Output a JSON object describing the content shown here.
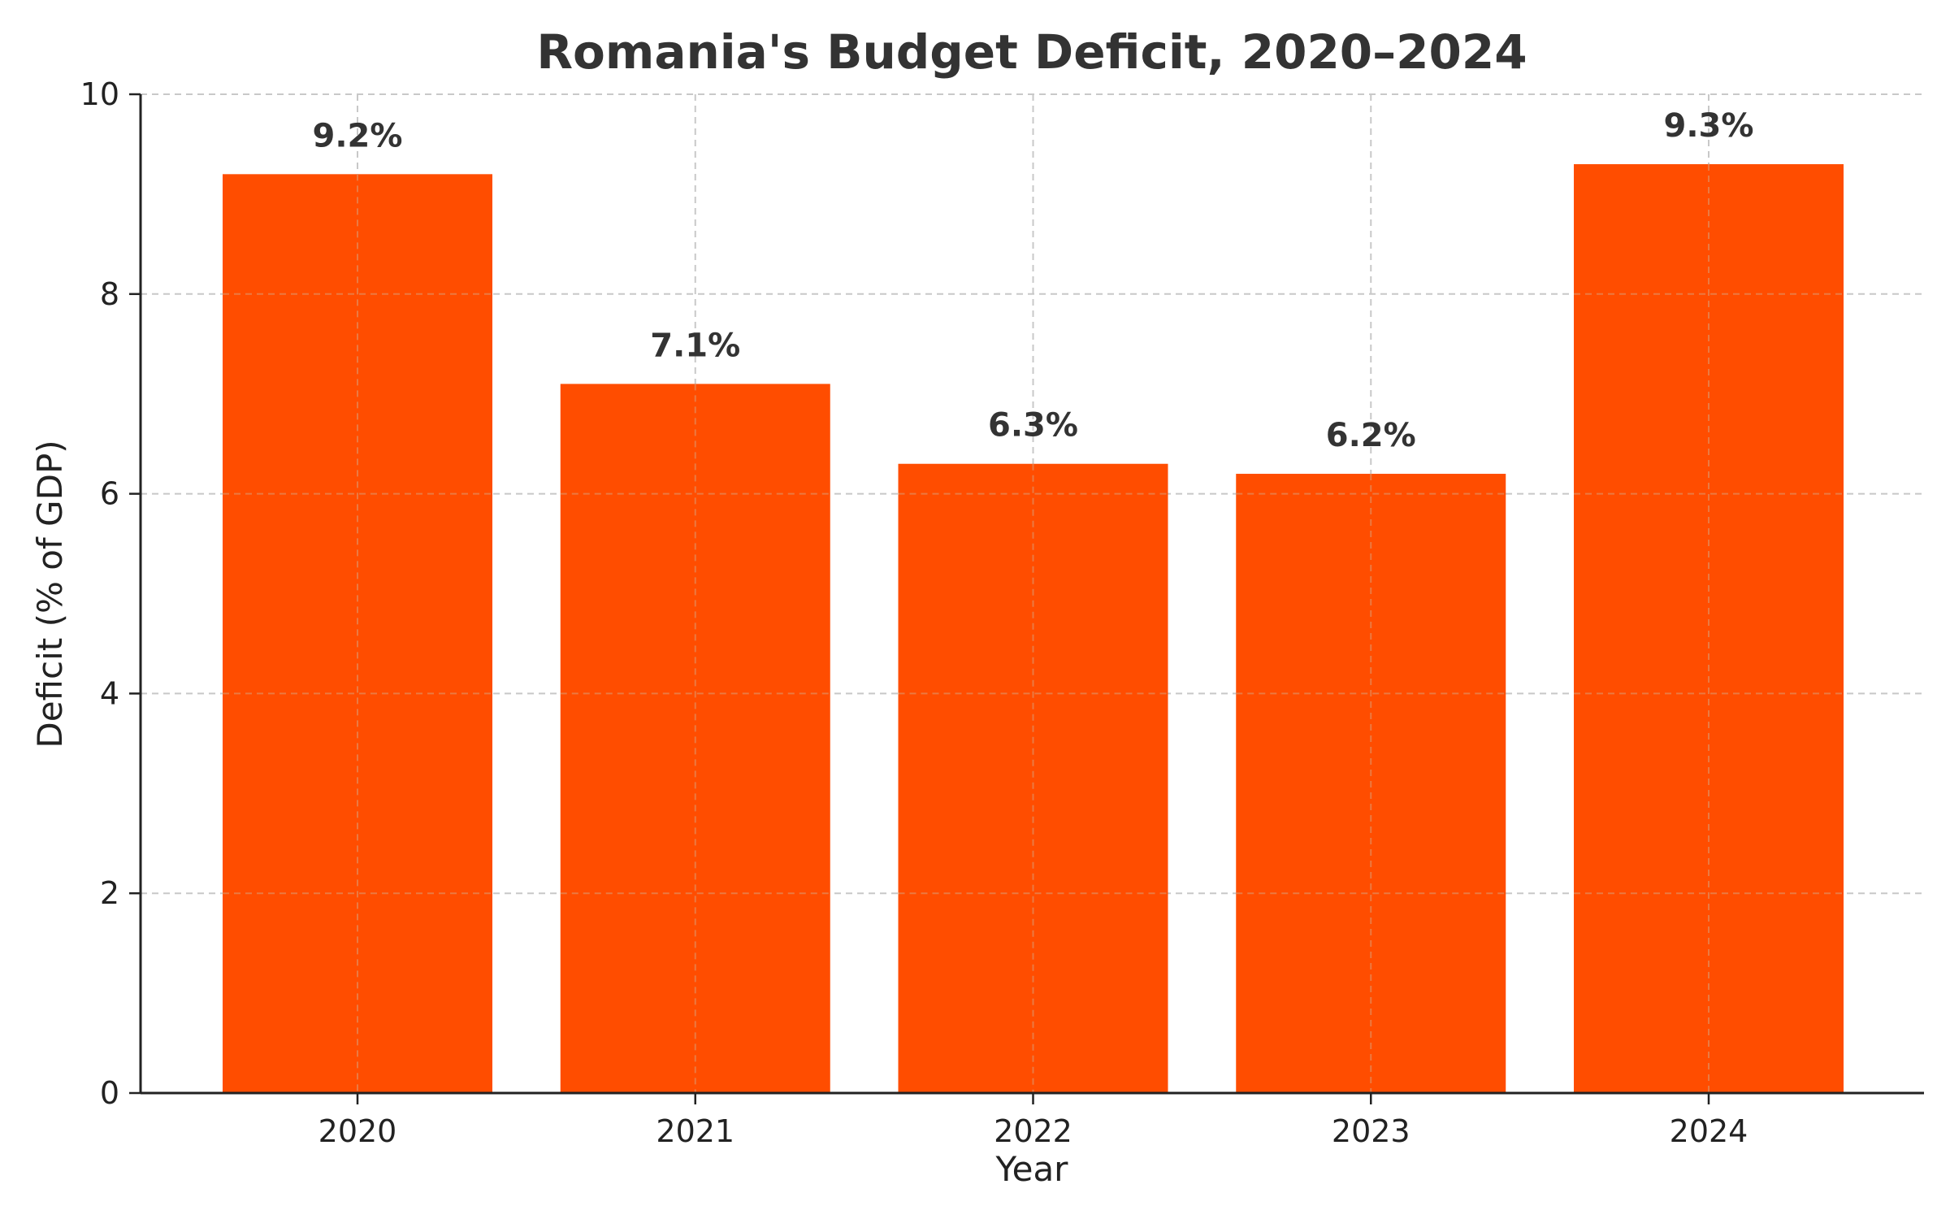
{
  "chart_data": {
    "type": "bar",
    "title": "Romania's Budget Deficit, 2020–2024",
    "xlabel": "Year",
    "ylabel": "Deficit (% of GDP)",
    "categories": [
      "2020",
      "2021",
      "2022",
      "2023",
      "2024"
    ],
    "values": [
      9.2,
      7.1,
      6.3,
      6.2,
      9.3
    ],
    "data_labels": [
      "9.2%",
      "7.1%",
      "6.3%",
      "6.2%",
      "9.3%"
    ],
    "ylim": [
      0,
      10
    ],
    "yticks": [
      0,
      2,
      4,
      6,
      8,
      10
    ],
    "ytick_labels": [
      "0",
      "2",
      "4",
      "6",
      "8",
      "10"
    ],
    "grid": true,
    "bar_color": "#ff4d00",
    "grid_color": "#c8c8c8"
  }
}
